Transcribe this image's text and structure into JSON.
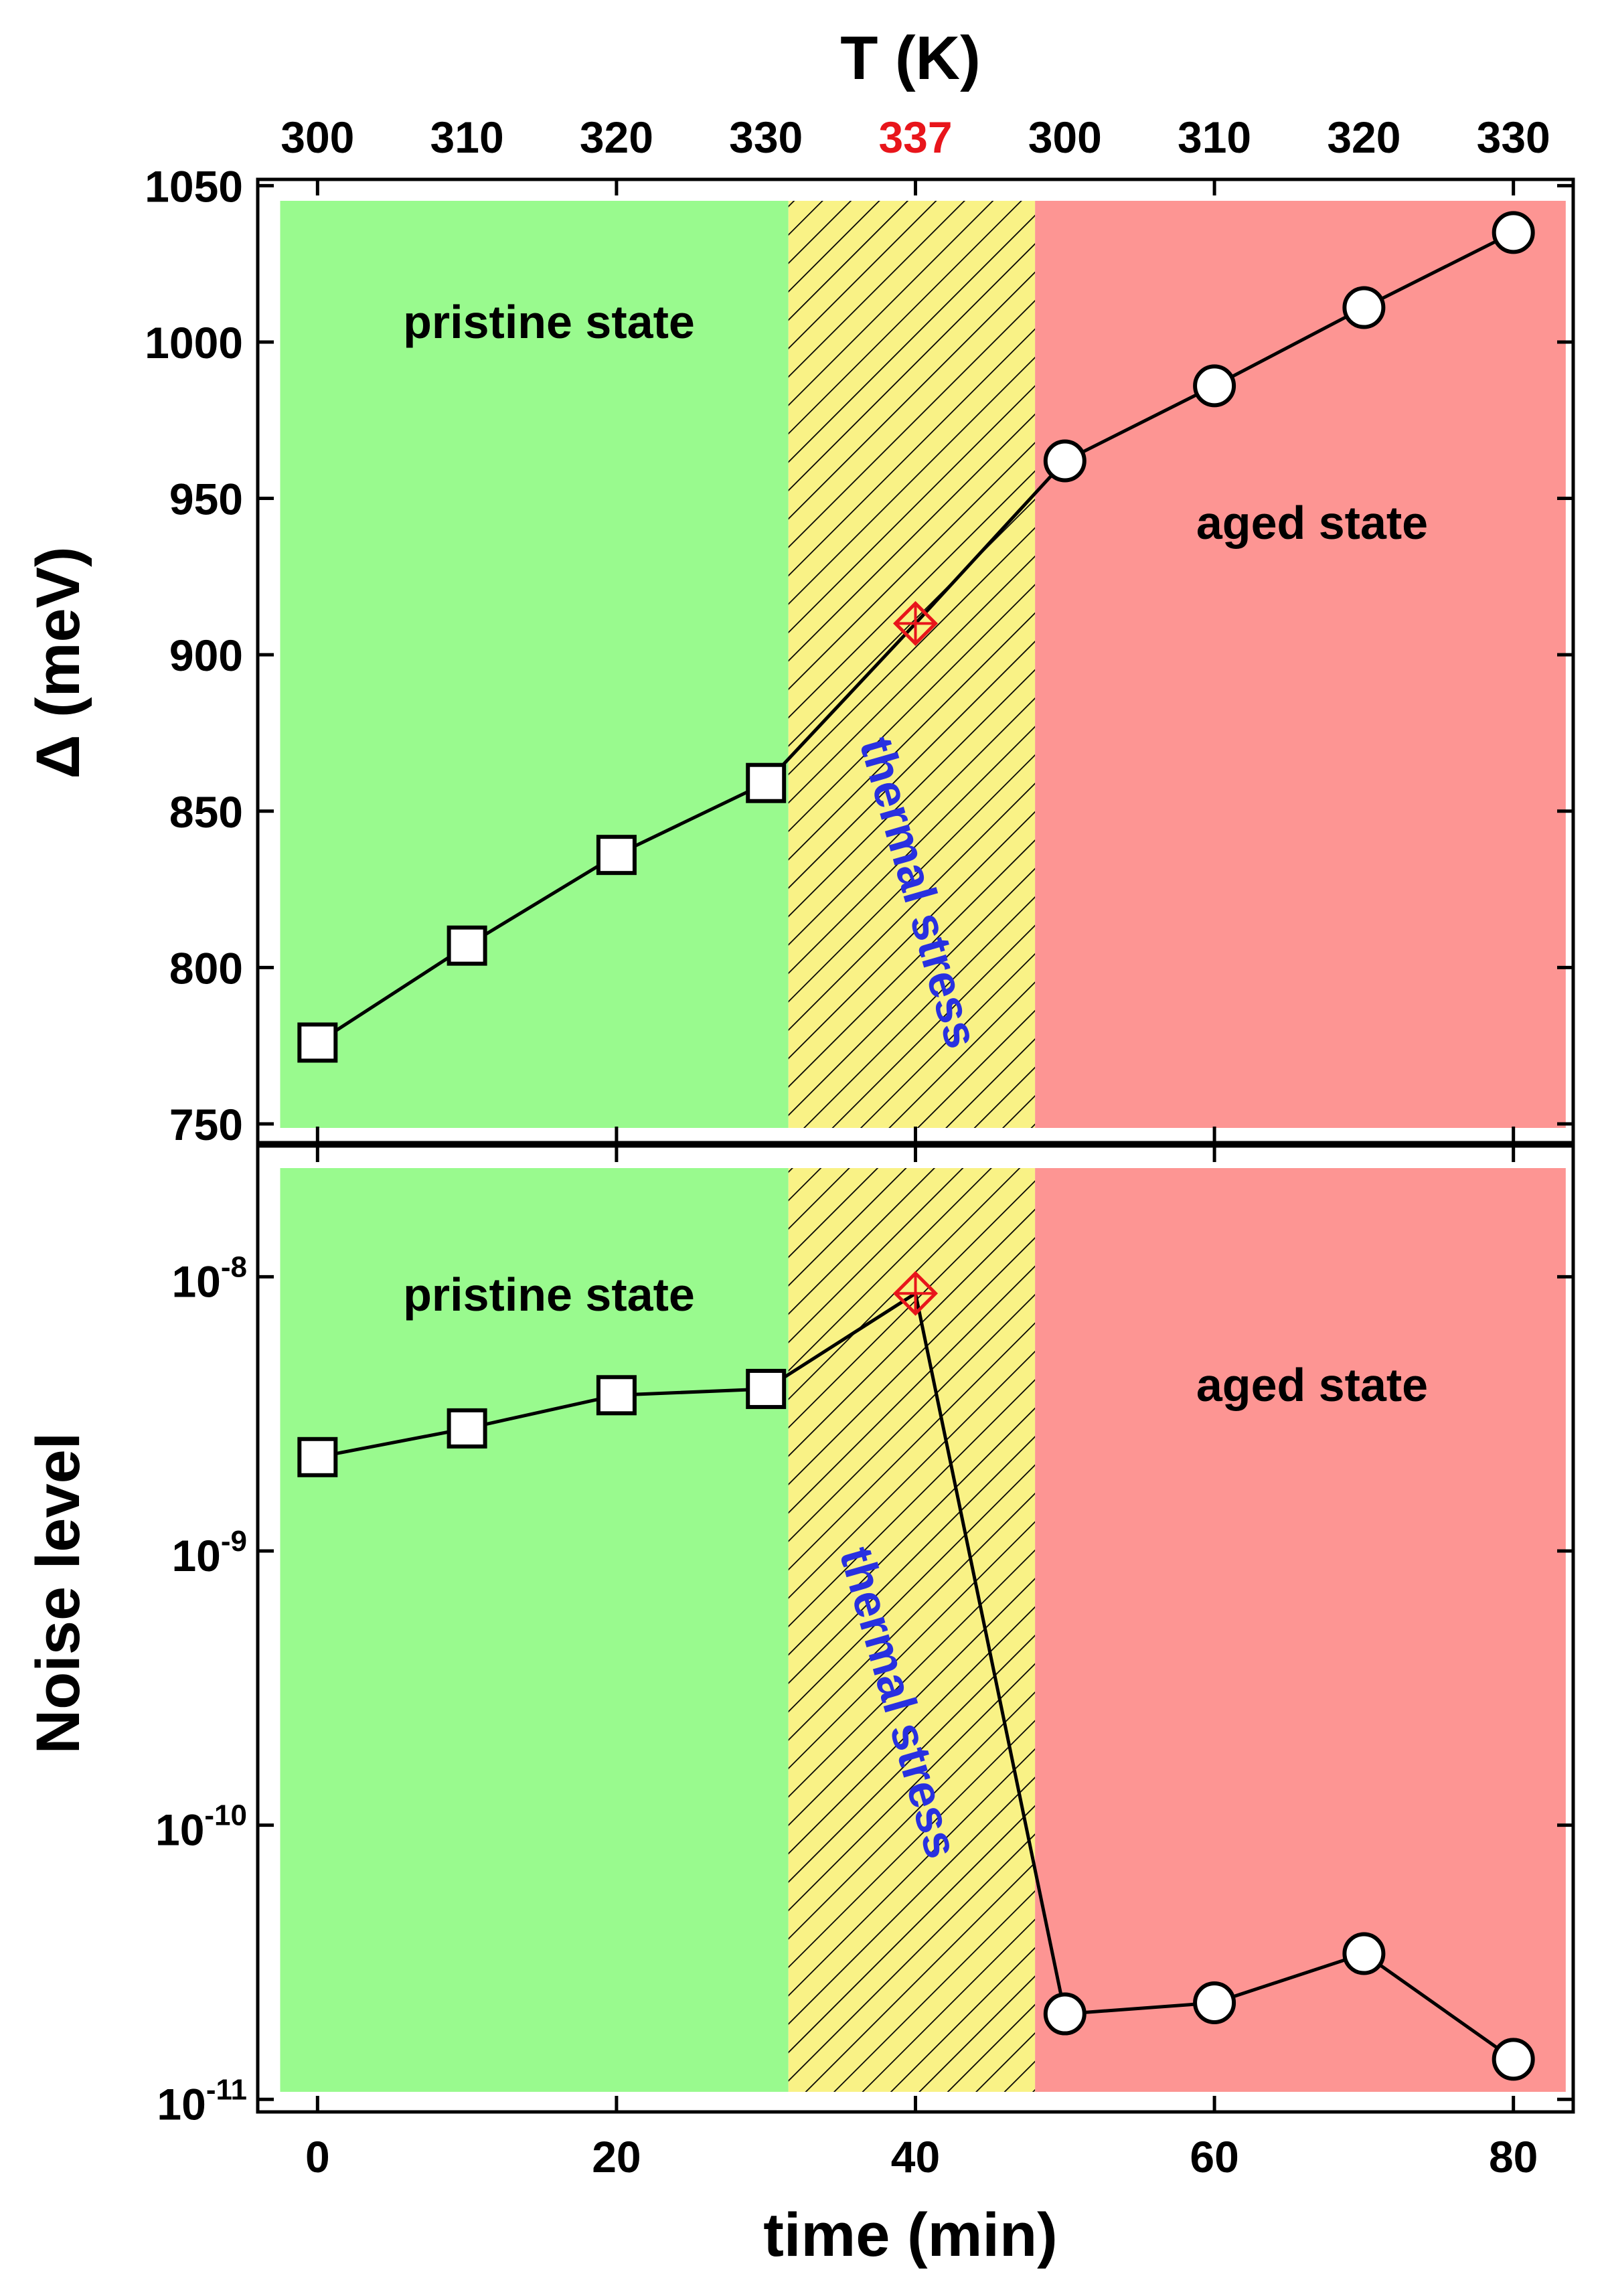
{
  "chart_data": {
    "type": "line",
    "shared_x_axis": {
      "label": "time (min)",
      "range": [
        -4,
        84
      ],
      "ticks": [
        0,
        20,
        40,
        60,
        80
      ],
      "tick_labels": [
        "0",
        "20",
        "40",
        "60",
        "80"
      ]
    },
    "top_axis": {
      "label": "T (K)",
      "tick_positions": [
        0,
        10,
        20,
        30,
        40,
        50,
        60,
        70,
        80
      ],
      "tick_labels": [
        "300",
        "310",
        "320",
        "330",
        "337",
        "300",
        "310",
        "320",
        "330"
      ],
      "highlight_label": "337",
      "highlight_color": "#e8151b"
    },
    "regions": [
      {
        "name": "pristine",
        "label": "pristine state",
        "x_range": [
          -2.5,
          31.5
        ],
        "color": "#99fa8e"
      },
      {
        "name": "stress",
        "label": "thermal stress",
        "x_range": [
          31.5,
          48
        ],
        "color": "#f9f286",
        "hatch": true
      },
      {
        "name": "aged",
        "label": "aged state",
        "x_range": [
          48,
          83.5
        ],
        "color": "#fd9593"
      }
    ],
    "colors": {
      "line": "#000000",
      "marker_fill": "#ffffff",
      "stress_marker": "#e8151b",
      "stress_text": "#2830e0"
    },
    "panels": [
      {
        "id": "delta",
        "ylabel": "Δ (meV)",
        "yscale": "linear",
        "ylim": [
          744,
          1052
        ],
        "yticks": [
          750,
          800,
          850,
          900,
          950,
          1000,
          1050
        ],
        "ytick_labels": [
          "750",
          "800",
          "850",
          "900",
          "950",
          "1000",
          "1050"
        ],
        "series": [
          {
            "name": "pristine",
            "marker": "square",
            "x": [
              0,
              10,
              20,
              30
            ],
            "y": [
              776,
              807,
              836,
              859
            ]
          },
          {
            "name": "thermal stress",
            "marker": "crossed-diamond",
            "x": [
              40
            ],
            "y": [
              910
            ]
          },
          {
            "name": "aged",
            "marker": "circle",
            "x": [
              50,
              60,
              70,
              80
            ],
            "y": [
              962,
              986,
              1011,
              1035
            ]
          }
        ]
      },
      {
        "id": "noise",
        "ylabel": "Noise level",
        "yscale": "log",
        "ylim": [
          9e-12,
          3e-08
        ],
        "yticks": [
          1e-11,
          1e-10,
          1e-09,
          1e-08
        ],
        "ytick_labels": [
          {
            "base": "10",
            "exp": "-11"
          },
          {
            "base": "10",
            "exp": "-10"
          },
          {
            "base": "10",
            "exp": "-9"
          },
          {
            "base": "10",
            "exp": "-8"
          }
        ],
        "series": [
          {
            "name": "pristine",
            "marker": "square",
            "x": [
              0,
              10,
              20,
              30
            ],
            "y": [
              2.2e-09,
              2.8e-09,
              3.7e-09,
              3.9e-09
            ]
          },
          {
            "name": "thermal stress",
            "marker": "crossed-diamond",
            "x": [
              40
            ],
            "y": [
              8.7e-09
            ]
          },
          {
            "name": "aged",
            "marker": "circle",
            "x": [
              50,
              60,
              70,
              80
            ],
            "y": [
              2.05e-11,
              2.25e-11,
              3.4e-11,
              1.4e-11
            ]
          }
        ]
      }
    ]
  }
}
